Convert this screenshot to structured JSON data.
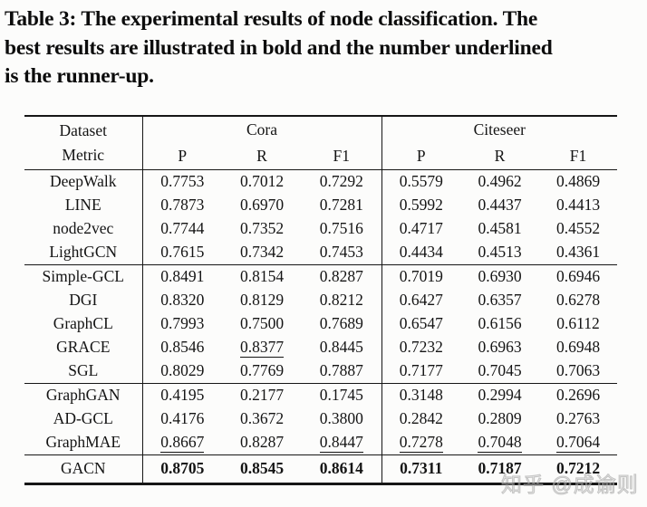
{
  "caption": {
    "line1": "Table 3: The experimental results of node classification. The",
    "line2": "best results are illustrated in bold and the number underlined",
    "line3": "is the runner-up."
  },
  "header": {
    "dataset": "Dataset",
    "metric": "Metric",
    "cora": "Cora",
    "citeseer": "Citeseer",
    "metrics": [
      "P",
      "R",
      "F1"
    ]
  },
  "groups": [
    {
      "rows": [
        {
          "name": "DeepWalk",
          "cells": [
            {
              "v": "0.7753"
            },
            {
              "v": "0.7012"
            },
            {
              "v": "0.7292"
            },
            {
              "v": "0.5579"
            },
            {
              "v": "0.4962"
            },
            {
              "v": "0.4869"
            }
          ]
        },
        {
          "name": "LINE",
          "cells": [
            {
              "v": "0.7873"
            },
            {
              "v": "0.6970"
            },
            {
              "v": "0.7281"
            },
            {
              "v": "0.5992"
            },
            {
              "v": "0.4437"
            },
            {
              "v": "0.4413"
            }
          ]
        },
        {
          "name": "node2vec",
          "cells": [
            {
              "v": "0.7744"
            },
            {
              "v": "0.7352"
            },
            {
              "v": "0.7516"
            },
            {
              "v": "0.4717"
            },
            {
              "v": "0.4581"
            },
            {
              "v": "0.4552"
            }
          ]
        },
        {
          "name": "LightGCN",
          "cells": [
            {
              "v": "0.7615"
            },
            {
              "v": "0.7342"
            },
            {
              "v": "0.7453"
            },
            {
              "v": "0.4434"
            },
            {
              "v": "0.4513"
            },
            {
              "v": "0.4361"
            }
          ]
        }
      ]
    },
    {
      "rows": [
        {
          "name": "Simple-GCL",
          "cells": [
            {
              "v": "0.8491"
            },
            {
              "v": "0.8154"
            },
            {
              "v": "0.8287"
            },
            {
              "v": "0.7019"
            },
            {
              "v": "0.6930"
            },
            {
              "v": "0.6946"
            }
          ]
        },
        {
          "name": "DGI",
          "cells": [
            {
              "v": "0.8320"
            },
            {
              "v": "0.8129"
            },
            {
              "v": "0.8212"
            },
            {
              "v": "0.6427"
            },
            {
              "v": "0.6357"
            },
            {
              "v": "0.6278"
            }
          ]
        },
        {
          "name": "GraphCL",
          "cells": [
            {
              "v": "0.7993"
            },
            {
              "v": "0.7500"
            },
            {
              "v": "0.7689"
            },
            {
              "v": "0.6547"
            },
            {
              "v": "0.6156"
            },
            {
              "v": "0.6112"
            }
          ]
        },
        {
          "name": "GRACE",
          "cells": [
            {
              "v": "0.8546"
            },
            {
              "v": "0.8377",
              "u": true
            },
            {
              "v": "0.8445"
            },
            {
              "v": "0.7232"
            },
            {
              "v": "0.6963"
            },
            {
              "v": "0.6948"
            }
          ]
        },
        {
          "name": "SGL",
          "cells": [
            {
              "v": "0.8029"
            },
            {
              "v": "0.7769"
            },
            {
              "v": "0.7887"
            },
            {
              "v": "0.7177"
            },
            {
              "v": "0.7045"
            },
            {
              "v": "0.7063"
            }
          ]
        }
      ]
    },
    {
      "rows": [
        {
          "name": "GraphGAN",
          "cells": [
            {
              "v": "0.4195"
            },
            {
              "v": "0.2177"
            },
            {
              "v": "0.1745"
            },
            {
              "v": "0.3148"
            },
            {
              "v": "0.2994"
            },
            {
              "v": "0.2696"
            }
          ]
        },
        {
          "name": "AD-GCL",
          "cells": [
            {
              "v": "0.4176"
            },
            {
              "v": "0.3672"
            },
            {
              "v": "0.3800"
            },
            {
              "v": "0.2842"
            },
            {
              "v": "0.2809"
            },
            {
              "v": "0.2763"
            }
          ]
        },
        {
          "name": "GraphMAE",
          "cells": [
            {
              "v": "0.8667",
              "u": true
            },
            {
              "v": "0.8287"
            },
            {
              "v": "0.8447",
              "u": true
            },
            {
              "v": "0.7278",
              "u": true
            },
            {
              "v": "0.7048",
              "u": true
            },
            {
              "v": "0.7064",
              "u": true
            }
          ]
        }
      ]
    },
    {
      "rows": [
        {
          "name": "GACN",
          "cells": [
            {
              "v": "0.8705",
              "b": true
            },
            {
              "v": "0.8545",
              "b": true
            },
            {
              "v": "0.8614",
              "b": true
            },
            {
              "v": "0.7311",
              "b": true
            },
            {
              "v": "0.7187",
              "b": true
            },
            {
              "v": "0.7212",
              "b": true
            }
          ]
        }
      ]
    }
  ],
  "watermark": "知乎 @成谕则"
}
